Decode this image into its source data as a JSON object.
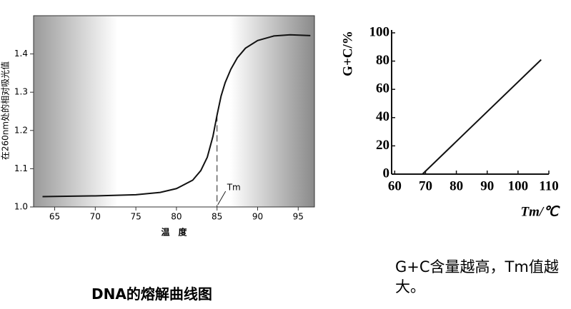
{
  "chart_data": [
    {
      "type": "line",
      "y_label": "在260nm处的相对吸光值",
      "x_label": "温　度",
      "x": [
        63.5,
        70,
        75,
        78,
        80,
        82,
        83,
        83.8,
        84.5,
        85,
        85.5,
        86,
        86.7,
        87.5,
        88.5,
        90,
        92,
        94,
        96.5
      ],
      "values": [
        1.027,
        1.029,
        1.032,
        1.038,
        1.048,
        1.07,
        1.095,
        1.13,
        1.185,
        1.24,
        1.29,
        1.325,
        1.36,
        1.39,
        1.415,
        1.435,
        1.447,
        1.45,
        1.448
      ],
      "color": "#111111",
      "xlim": [
        62.4,
        97
      ],
      "ylim": [
        1.0,
        1.5
      ],
      "xticks": [
        65,
        70,
        75,
        80,
        85,
        90,
        95
      ],
      "yticks": [
        {
          "value": 1.0,
          "label": "1.0"
        },
        1.1,
        1.2,
        1.3,
        1.4
      ],
      "annotation": {
        "text": "Tm",
        "x": 85,
        "y": 1.24
      }
    },
    {
      "type": "line",
      "y_label": "G+C/%",
      "x_label": "Tm/℃",
      "x": [
        69,
        107.5
      ],
      "values": [
        0,
        81
      ],
      "color": "#111111",
      "xlim": [
        59,
        110
      ],
      "ylim": [
        0,
        100
      ],
      "xticks": [
        60,
        70,
        80,
        90,
        100,
        110
      ],
      "yticks": [
        0,
        20,
        40,
        60,
        80,
        100
      ]
    }
  ],
  "captions": [
    "DNA的熔解曲线图",
    "G+C含量越高，Tm值越大。"
  ]
}
